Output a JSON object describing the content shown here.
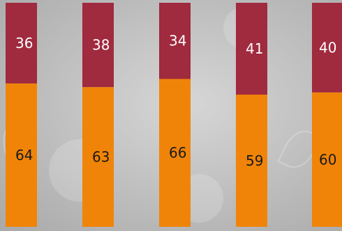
{
  "chart_data": {
    "type": "bar",
    "stacked": true,
    "normalized_percent": true,
    "categories": [
      "",
      "",
      "",
      "",
      ""
    ],
    "series": [
      {
        "values": [
          64,
          63,
          66,
          59,
          60
        ],
        "color": "#F08408",
        "label_color": "#1a1a1a"
      },
      {
        "values": [
          36,
          38,
          34,
          41,
          40
        ],
        "color": "#A02A3E",
        "label_color": "#ffffff"
      }
    ],
    "ylim": [
      0,
      100
    ],
    "grid": false,
    "legend": "none",
    "title": "",
    "xlabel": "",
    "ylabel": ""
  }
}
